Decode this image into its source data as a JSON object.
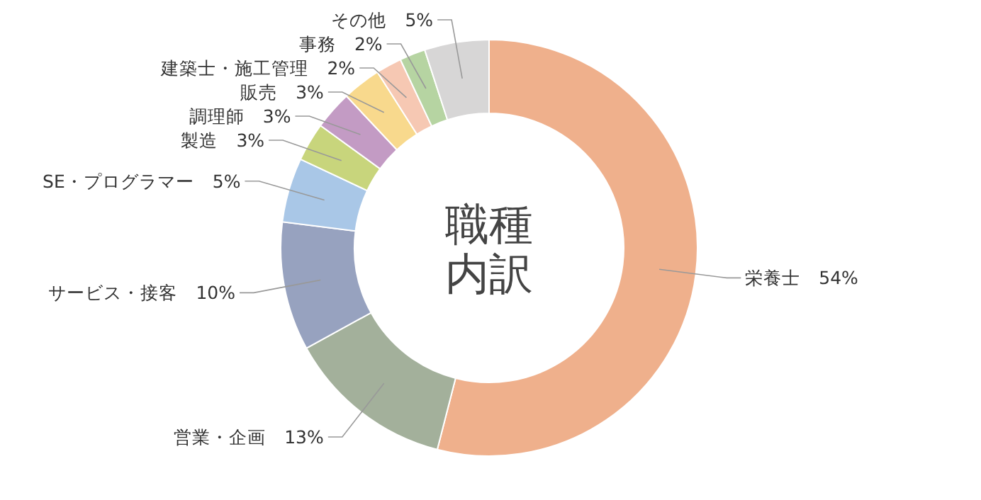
{
  "chart_data": {
    "type": "donut",
    "title": "職種内訳",
    "categories": [
      "栄養士",
      "営業・企画",
      "サービス・接客",
      "SE・プログラマー",
      "製造",
      "調理師",
      "販売",
      "建築士・施工管理",
      "事務",
      "その他"
    ],
    "values": [
      54,
      13,
      10,
      5,
      3,
      3,
      3,
      2,
      2,
      5
    ],
    "colors": [
      "#efb08c",
      "#a3b09b",
      "#97a2bf",
      "#a9c7e7",
      "#c8d57c",
      "#c39bc4",
      "#f8d98d",
      "#f6c8b3",
      "#b6d4a2",
      "#d7d6d6"
    ],
    "value_labels": [
      "54%",
      "13%",
      "10%",
      "5%",
      "3%",
      "3%",
      "3%",
      "2%",
      "2%",
      "5%"
    ]
  }
}
